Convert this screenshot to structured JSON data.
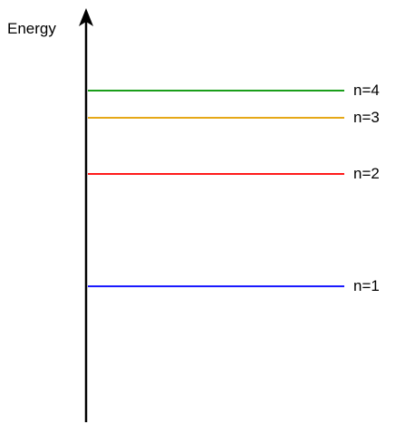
{
  "axis": {
    "label": "Energy",
    "color": "#000000"
  },
  "levels": [
    {
      "label": "n=1",
      "color": "#1a1aff"
    },
    {
      "label": "n=2",
      "color": "#ff1a1a"
    },
    {
      "label": "n=3",
      "color": "#e6a817"
    },
    {
      "label": "n=4",
      "color": "#1a9e1a"
    }
  ]
}
